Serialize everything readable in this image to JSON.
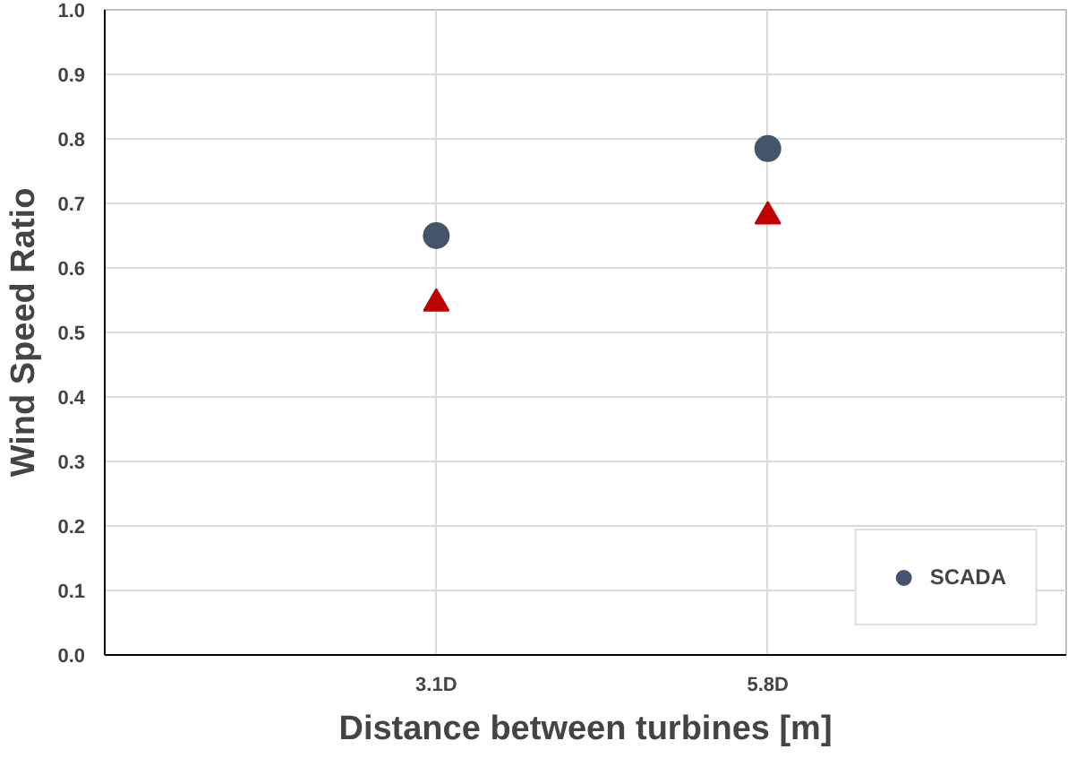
{
  "chart_data": {
    "type": "scatter",
    "xlabel": "Distance between turbines [m]",
    "ylabel": "Wind Speed Ratio",
    "categories": [
      "3.1D",
      "5.8D"
    ],
    "series": [
      {
        "name": "SCADA",
        "color": "#44546a",
        "marker": "circle",
        "values": [
          0.65,
          0.785
        ]
      },
      {
        "color": "#c00000",
        "marker": "triangle",
        "values": [
          0.545,
          0.68
        ]
      }
    ],
    "ylim": [
      0,
      1
    ],
    "yticks": [
      {
        "value": 0,
        "label": "0.0"
      },
      {
        "value": 0.1,
        "label": "0.1"
      },
      {
        "value": 0.2,
        "label": "0.2"
      },
      {
        "value": 0.3,
        "label": "0.3"
      },
      {
        "value": 0.4,
        "label": "0.4"
      },
      {
        "value": 0.5,
        "label": "0.5"
      },
      {
        "value": 0.6,
        "label": "0.6"
      },
      {
        "value": 0.7,
        "label": "0.7"
      },
      {
        "value": 0.8,
        "label": "0.8"
      },
      {
        "value": 0.9,
        "label": "0.9"
      },
      {
        "value": 1,
        "label": "1.0"
      }
    ],
    "grid": true,
    "legend": "bottom right"
  }
}
